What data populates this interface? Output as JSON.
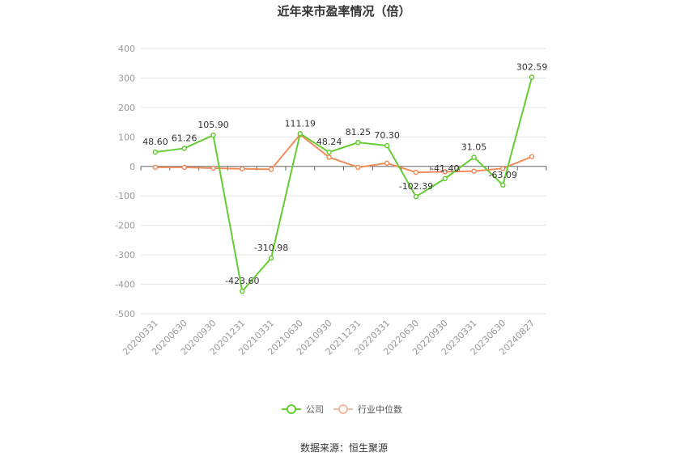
{
  "chart_data": {
    "type": "line",
    "title": "近年来市盈率情况（倍）",
    "categories": [
      "20200331",
      "20200630",
      "20200930",
      "20201231",
      "20210331",
      "20210630",
      "20210930",
      "20211231",
      "20220331",
      "20220630",
      "20220930",
      "20230331",
      "20230630",
      "20240827"
    ],
    "ylim": [
      -500,
      400
    ],
    "yticks": [
      400,
      300,
      200,
      100,
      0,
      -100,
      -200,
      -300,
      -400,
      -500
    ],
    "grid": true,
    "legend_position": "bottom",
    "series": [
      {
        "name": "公司",
        "color": "#66cc33",
        "values": [
          48.6,
          61.26,
          105.9,
          -423.6,
          -310.98,
          111.19,
          48.24,
          81.25,
          70.3,
          -102.39,
          -41.4,
          31.05,
          -63.09,
          302.59
        ],
        "labels": [
          "48.60",
          "61.26",
          "105.90",
          "-423.60",
          "-310.98",
          "111.19",
          "48.24",
          "81.25",
          "70.30",
          "-102.39",
          "-41.40",
          "31.05",
          "-63.09",
          "302.59"
        ]
      },
      {
        "name": "行业中位数",
        "color": "#f08c5a",
        "values": [
          -3,
          -3,
          -6,
          -8,
          -10,
          108,
          31,
          -3,
          11,
          -20,
          -18,
          -16,
          -7,
          33
        ]
      }
    ]
  },
  "footer": {
    "source": "数据来源：恒生聚源"
  }
}
